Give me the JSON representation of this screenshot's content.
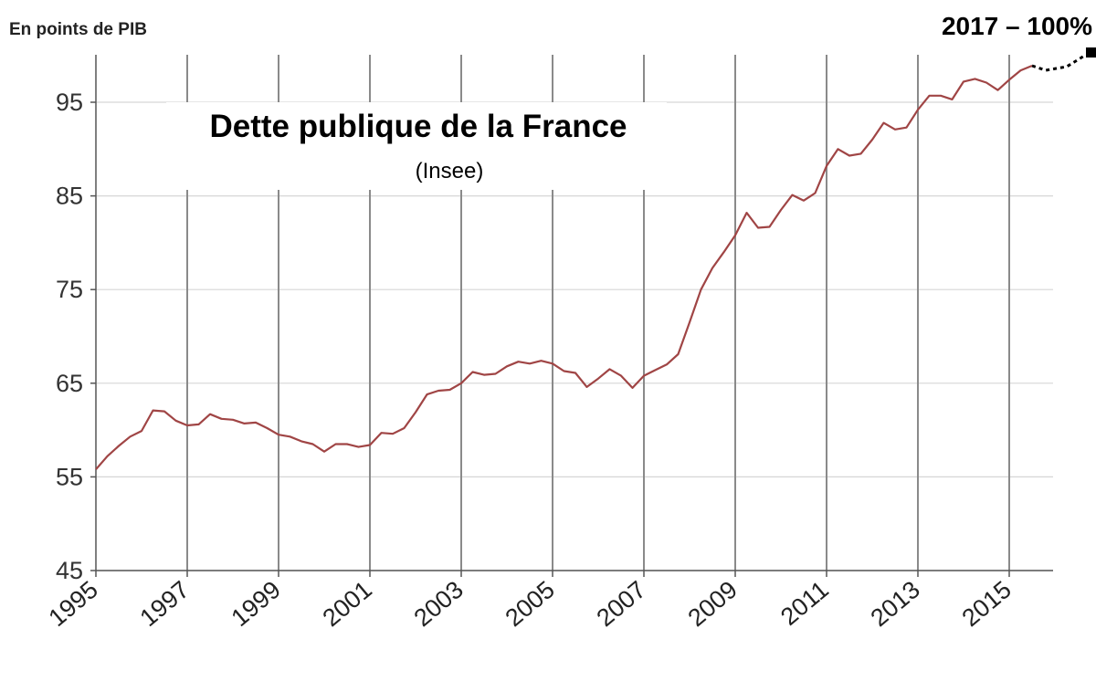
{
  "chart_data": {
    "type": "line",
    "title": "Dette publique de la France",
    "subtitle": "(Insee)",
    "ylabel": "En points de PIB",
    "xlabel": "",
    "annotation": "2017 – 100%",
    "ylim": [
      45,
      100
    ],
    "xlim": [
      1995,
      2015.5
    ],
    "yticks": [
      45,
      55,
      65,
      75,
      85,
      95
    ],
    "xticks": [
      "1995",
      "1997",
      "1999",
      "2001",
      "2003",
      "2005",
      "2007",
      "2009",
      "2011",
      "2013",
      "2015"
    ],
    "grid": true,
    "series_color": "#a04545",
    "series": [
      {
        "x": [
          1995.0,
          1995.25,
          1995.5,
          1995.75,
          1996.0,
          1996.25,
          1996.5,
          1996.75,
          1997.0,
          1997.25,
          1997.5,
          1997.75,
          1998.0,
          1998.25,
          1998.5,
          1998.75,
          1999.0,
          1999.25,
          1999.5,
          1999.75,
          2000.0,
          2000.25,
          2000.5,
          2000.75,
          2001.0,
          2001.25,
          2001.5,
          2001.75,
          2002.0,
          2002.25,
          2002.5,
          2002.75,
          2003.0,
          2003.25,
          2003.5,
          2003.75,
          2004.0,
          2004.25,
          2004.5,
          2004.75,
          2005.0,
          2005.25,
          2005.5,
          2005.75,
          2006.0,
          2006.25,
          2006.5,
          2006.75,
          2007.0,
          2007.25,
          2007.5,
          2007.75,
          2008.0,
          2008.25,
          2008.5,
          2008.75,
          2009.0,
          2009.25,
          2009.5,
          2009.75,
          2010.0,
          2010.25,
          2010.5,
          2010.75,
          2011.0,
          2011.25,
          2011.5,
          2011.75,
          2012.0,
          2012.25,
          2012.5,
          2012.75,
          2013.0,
          2013.25,
          2013.5,
          2013.75,
          2014.0,
          2014.25,
          2014.5,
          2014.75,
          2015.0,
          2015.25,
          2015.5
        ],
        "values": [
          55.8,
          57.2,
          58.3,
          59.3,
          59.9,
          62.1,
          62.0,
          61.0,
          60.5,
          60.6,
          61.7,
          61.2,
          61.1,
          60.7,
          60.8,
          60.2,
          59.5,
          59.3,
          58.8,
          58.5,
          57.7,
          58.5,
          58.5,
          58.2,
          58.4,
          59.7,
          59.6,
          60.2,
          61.9,
          63.8,
          64.2,
          64.3,
          65.0,
          66.2,
          65.9,
          66.0,
          66.8,
          67.3,
          67.1,
          67.4,
          67.1,
          66.3,
          66.1,
          64.6,
          65.5,
          66.5,
          65.8,
          64.5,
          65.8,
          66.4,
          67.0,
          68.1,
          71.5,
          75.0,
          77.3,
          79.0,
          80.8,
          83.2,
          81.6,
          81.7,
          83.5,
          85.1,
          84.5,
          85.3,
          88.2,
          90.0,
          89.3,
          89.5,
          91.0,
          92.8,
          92.1,
          92.3,
          94.2,
          95.7,
          95.7,
          95.3,
          97.2,
          97.5,
          97.1,
          96.3,
          97.4,
          98.4,
          98.9
        ]
      }
    ]
  }
}
